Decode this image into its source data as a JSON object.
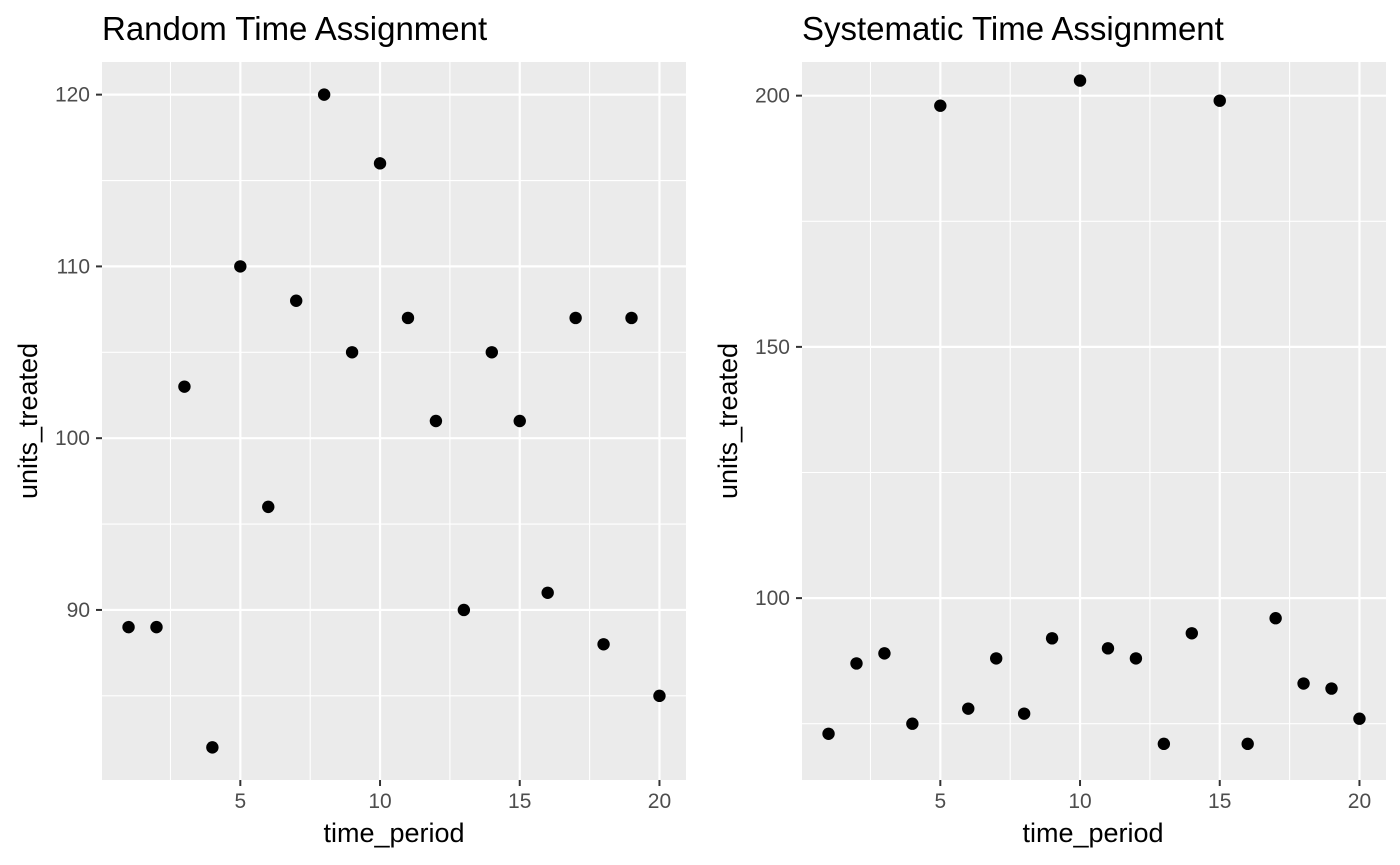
{
  "chart_data": [
    {
      "type": "scatter",
      "title": "Random Time Assignment",
      "xlabel": "time_period",
      "ylabel": "units_treated",
      "xlim": [
        0.05,
        20.95
      ],
      "ylim": [
        80.1,
        121.9
      ],
      "xticks": [
        5,
        10,
        15,
        20
      ],
      "yticks": [
        90,
        100,
        110,
        120
      ],
      "grid": true,
      "x": [
        1,
        2,
        3,
        4,
        5,
        6,
        7,
        8,
        9,
        10,
        11,
        12,
        13,
        14,
        15,
        16,
        17,
        18,
        19,
        20
      ],
      "y": [
        89,
        89,
        103,
        82,
        110,
        96,
        108,
        120,
        105,
        116,
        107,
        101,
        90,
        105,
        101,
        91,
        107,
        88,
        107,
        85
      ]
    },
    {
      "type": "scatter",
      "title": "Systematic Time Assignment",
      "xlabel": "time_period",
      "ylabel": "units_treated",
      "xlim": [
        0.05,
        20.95
      ],
      "ylim": [
        63.8,
        206.7
      ],
      "xticks": [
        5,
        10,
        15,
        20
      ],
      "yticks": [
        100,
        150,
        200
      ],
      "grid": true,
      "x": [
        1,
        2,
        3,
        4,
        5,
        6,
        7,
        8,
        9,
        10,
        11,
        12,
        13,
        14,
        15,
        16,
        17,
        18,
        19,
        20
      ],
      "y": [
        73,
        87,
        89,
        75,
        198,
        78,
        88,
        77,
        92,
        203,
        90,
        88,
        71,
        93,
        199,
        71,
        96,
        83,
        82,
        76
      ]
    }
  ],
  "colors": {
    "panel_background": "#ebebeb",
    "grid_major": "#ffffff",
    "point": "#000000",
    "tick_label": "#4d4d4d",
    "tick_mark": "#333333"
  }
}
